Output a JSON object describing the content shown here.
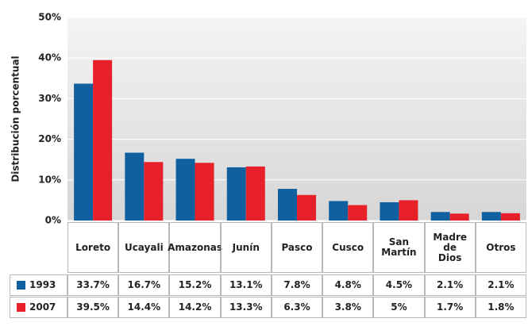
{
  "chart_data": {
    "type": "bar",
    "y_label": "Distribución porcentual",
    "categories": [
      "Loreto",
      "Ucayali",
      "Amazonas",
      "Junín",
      "Pasco",
      "Cusco",
      "San Martín",
      "Madre de Dios",
      "Otros"
    ],
    "series": [
      {
        "name": "1993",
        "color": "#10609f",
        "values": [
          33.7,
          16.7,
          15.2,
          13.1,
          7.8,
          4.8,
          4.5,
          2.1,
          2.1
        ],
        "value_labels": [
          "33.7%",
          "16.7%",
          "15.2%",
          "13.1%",
          "7.8%",
          "4.8%",
          "4.5%",
          "2.1%",
          "2.1%"
        ]
      },
      {
        "name": "2007",
        "color": "#e8202a",
        "values": [
          39.5,
          14.4,
          14.2,
          13.3,
          6.3,
          3.8,
          5,
          1.7,
          1.8
        ],
        "value_labels": [
          "39.5%",
          "14.4%",
          "14.2%",
          "13.3%",
          "6.3%",
          "3.8%",
          "5%",
          "1.7%",
          "1.8%"
        ]
      }
    ],
    "ylim": [
      0,
      50
    ],
    "yticks": [
      {
        "value": 0,
        "label": "0%"
      },
      {
        "value": 10,
        "label": "10%"
      },
      {
        "value": 20,
        "label": "20%"
      },
      {
        "value": 30,
        "label": "30%"
      },
      {
        "value": 40,
        "label": "40%"
      },
      {
        "value": 50,
        "label": "50%"
      }
    ],
    "grid": true
  }
}
